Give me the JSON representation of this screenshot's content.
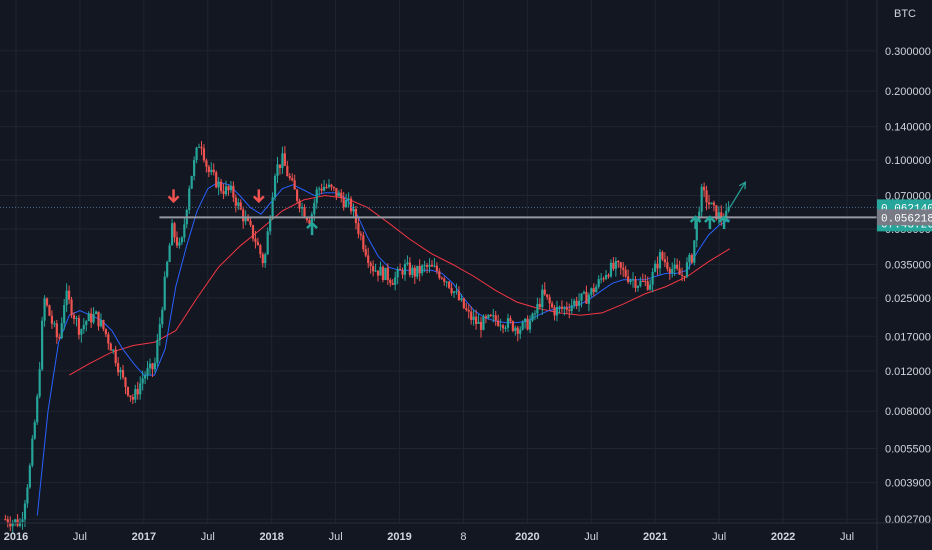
{
  "chart_data": {
    "type": "candlestick",
    "title": "",
    "unit": "BTC",
    "scale": "log",
    "ylim": [
      0.0026,
      0.5
    ],
    "grid": true,
    "y_ticks": [
      "0.300000",
      "0.200000",
      "0.140000",
      "0.100000",
      "0.070000",
      "0.050000",
      "0.035000",
      "0.025000",
      "0.017000",
      "0.012000",
      "0.008000",
      "0.005500",
      "0.003900",
      "0.002700"
    ],
    "x_ticks": [
      {
        "label": "2016",
        "date": "2016-01",
        "year": true
      },
      {
        "label": "Jul",
        "date": "2016-07",
        "year": false
      },
      {
        "label": "2017",
        "date": "2017-01",
        "year": true
      },
      {
        "label": "Jul",
        "date": "2017-07",
        "year": false
      },
      {
        "label": "2018",
        "date": "2018-01",
        "year": true
      },
      {
        "label": "Jul",
        "date": "2018-07",
        "year": false
      },
      {
        "label": "2019",
        "date": "2019-01",
        "year": true
      },
      {
        "label": "8",
        "date": "2019-07",
        "year": false
      },
      {
        "label": "2020",
        "date": "2020-01",
        "year": true
      },
      {
        "label": "Jul",
        "date": "2020-07",
        "year": false
      },
      {
        "label": "2021",
        "date": "2021-01",
        "year": true
      },
      {
        "label": "Jul",
        "date": "2021-07",
        "year": false
      },
      {
        "label": "2022",
        "date": "2022-01",
        "year": true
      },
      {
        "label": "Jul",
        "date": "2022-07",
        "year": false
      }
    ],
    "price_path": [
      [
        "2015-12-01",
        0.0027
      ],
      [
        "2016-01-15",
        0.0026
      ],
      [
        "2016-02-10",
        0.0045
      ],
      [
        "2016-03-01",
        0.009
      ],
      [
        "2016-03-20",
        0.025
      ],
      [
        "2016-04-10",
        0.02
      ],
      [
        "2016-05-01",
        0.016
      ],
      [
        "2016-05-20",
        0.026
      ],
      [
        "2016-06-10",
        0.022
      ],
      [
        "2016-07-01",
        0.018
      ],
      [
        "2016-07-20",
        0.02
      ],
      [
        "2016-08-15",
        0.021
      ],
      [
        "2016-09-10",
        0.018
      ],
      [
        "2016-10-10",
        0.014
      ],
      [
        "2016-11-01",
        0.011
      ],
      [
        "2016-12-01",
        0.009
      ],
      [
        "2017-01-01",
        0.0115
      ],
      [
        "2017-02-01",
        0.0125
      ],
      [
        "2017-03-01",
        0.03
      ],
      [
        "2017-03-20",
        0.05
      ],
      [
        "2017-04-15",
        0.04
      ],
      [
        "2017-05-10",
        0.08
      ],
      [
        "2017-06-10",
        0.125
      ],
      [
        "2017-07-01",
        0.09
      ],
      [
        "2017-08-10",
        0.075
      ],
      [
        "2017-09-10",
        0.072
      ],
      [
        "2017-10-15",
        0.055
      ],
      [
        "2017-11-15",
        0.045
      ],
      [
        "2017-12-10",
        0.035
      ],
      [
        "2018-01-10",
        0.09
      ],
      [
        "2018-02-01",
        0.1
      ],
      [
        "2018-03-01",
        0.075
      ],
      [
        "2018-04-01",
        0.06
      ],
      [
        "2018-04-20",
        0.055
      ],
      [
        "2018-05-10",
        0.075
      ],
      [
        "2018-06-01",
        0.077
      ],
      [
        "2018-07-01",
        0.072
      ],
      [
        "2018-08-15",
        0.062
      ],
      [
        "2018-09-15",
        0.045
      ],
      [
        "2018-10-15",
        0.034
      ],
      [
        "2018-11-15",
        0.032
      ],
      [
        "2018-12-15",
        0.03
      ],
      [
        "2019-01-15",
        0.034
      ],
      [
        "2019-02-15",
        0.032
      ],
      [
        "2019-03-15",
        0.034
      ],
      [
        "2019-04-15",
        0.033
      ],
      [
        "2019-05-15",
        0.03
      ],
      [
        "2019-06-15",
        0.025
      ],
      [
        "2019-07-15",
        0.021
      ],
      [
        "2019-08-15",
        0.019
      ],
      [
        "2019-09-15",
        0.02
      ],
      [
        "2019-10-15",
        0.02
      ],
      [
        "2019-11-15",
        0.019
      ],
      [
        "2019-12-15",
        0.0185
      ],
      [
        "2020-01-15",
        0.02
      ],
      [
        "2020-02-15",
        0.026
      ],
      [
        "2020-03-15",
        0.022
      ],
      [
        "2020-04-15",
        0.0225
      ],
      [
        "2020-05-15",
        0.024
      ],
      [
        "2020-06-15",
        0.025
      ],
      [
        "2020-07-15",
        0.028
      ],
      [
        "2020-08-15",
        0.033
      ],
      [
        "2020-09-15",
        0.034
      ],
      [
        "2020-10-15",
        0.031
      ],
      [
        "2020-11-15",
        0.029
      ],
      [
        "2020-12-15",
        0.029
      ],
      [
        "2021-01-15",
        0.038
      ],
      [
        "2021-02-15",
        0.034
      ],
      [
        "2021-03-15",
        0.031
      ],
      [
        "2021-04-15",
        0.038
      ],
      [
        "2021-05-10",
        0.072
      ],
      [
        "2021-05-25",
        0.068
      ],
      [
        "2021-06-15",
        0.06
      ],
      [
        "2021-07-05",
        0.056
      ],
      [
        "2021-07-20",
        0.056
      ],
      [
        "2021-08-01",
        0.06214
      ]
    ],
    "ma_fast": [
      [
        "2016-03-01",
        0.0028
      ],
      [
        "2016-04-01",
        0.008
      ],
      [
        "2016-05-01",
        0.016
      ],
      [
        "2016-06-01",
        0.021
      ],
      [
        "2016-07-01",
        0.022
      ],
      [
        "2016-08-01",
        0.021
      ],
      [
        "2016-09-01",
        0.02
      ],
      [
        "2016-10-01",
        0.018
      ],
      [
        "2016-11-01",
        0.015
      ],
      [
        "2016-12-01",
        0.013
      ],
      [
        "2017-01-01",
        0.0115
      ],
      [
        "2017-02-01",
        0.0115
      ],
      [
        "2017-03-01",
        0.015
      ],
      [
        "2017-04-01",
        0.028
      ],
      [
        "2017-05-01",
        0.042
      ],
      [
        "2017-06-01",
        0.06
      ],
      [
        "2017-07-01",
        0.075
      ],
      [
        "2017-08-01",
        0.08
      ],
      [
        "2017-09-01",
        0.078
      ],
      [
        "2017-10-01",
        0.07
      ],
      [
        "2017-11-01",
        0.062
      ],
      [
        "2017-12-01",
        0.058
      ],
      [
        "2018-01-01",
        0.066
      ],
      [
        "2018-02-01",
        0.075
      ],
      [
        "2018-03-01",
        0.078
      ],
      [
        "2018-04-01",
        0.074
      ],
      [
        "2018-05-01",
        0.07
      ],
      [
        "2018-06-01",
        0.072
      ],
      [
        "2018-07-01",
        0.072
      ],
      [
        "2018-08-01",
        0.068
      ],
      [
        "2018-09-01",
        0.058
      ],
      [
        "2018-10-01",
        0.046
      ],
      [
        "2018-11-01",
        0.038
      ],
      [
        "2018-12-01",
        0.034
      ],
      [
        "2019-01-01",
        0.033
      ],
      [
        "2019-02-01",
        0.033
      ],
      [
        "2019-03-01",
        0.033
      ],
      [
        "2019-04-01",
        0.033
      ],
      [
        "2019-05-01",
        0.032
      ],
      [
        "2019-06-01",
        0.029
      ],
      [
        "2019-07-01",
        0.025
      ],
      [
        "2019-08-01",
        0.022
      ],
      [
        "2019-09-01",
        0.0205
      ],
      [
        "2019-10-01",
        0.0198
      ],
      [
        "2019-11-01",
        0.0195
      ],
      [
        "2019-12-01",
        0.0195
      ],
      [
        "2020-01-01",
        0.0198
      ],
      [
        "2020-02-01",
        0.021
      ],
      [
        "2020-03-01",
        0.022
      ],
      [
        "2020-04-01",
        0.0225
      ],
      [
        "2020-05-01",
        0.0228
      ],
      [
        "2020-06-01",
        0.0235
      ],
      [
        "2020-07-01",
        0.025
      ],
      [
        "2020-08-01",
        0.027
      ],
      [
        "2020-09-01",
        0.029
      ],
      [
        "2020-10-01",
        0.03
      ],
      [
        "2020-11-01",
        0.03
      ],
      [
        "2020-12-01",
        0.03
      ],
      [
        "2021-01-01",
        0.031
      ],
      [
        "2021-02-01",
        0.032
      ],
      [
        "2021-03-01",
        0.032
      ],
      [
        "2021-04-01",
        0.033
      ],
      [
        "2021-05-01",
        0.04
      ],
      [
        "2021-06-01",
        0.047
      ],
      [
        "2021-07-01",
        0.052
      ],
      [
        "2021-08-01",
        0.055
      ]
    ],
    "ma_slow": [
      [
        "2016-06-01",
        0.0115
      ],
      [
        "2016-08-01",
        0.013
      ],
      [
        "2016-10-01",
        0.0145
      ],
      [
        "2016-12-01",
        0.0155
      ],
      [
        "2017-02-01",
        0.016
      ],
      [
        "2017-04-01",
        0.018
      ],
      [
        "2017-06-01",
        0.025
      ],
      [
        "2017-08-01",
        0.034
      ],
      [
        "2017-10-01",
        0.042
      ],
      [
        "2017-12-01",
        0.05
      ],
      [
        "2018-02-01",
        0.06
      ],
      [
        "2018-04-01",
        0.067
      ],
      [
        "2018-06-01",
        0.07
      ],
      [
        "2018-08-01",
        0.068
      ],
      [
        "2018-10-01",
        0.062
      ],
      [
        "2018-12-01",
        0.053
      ],
      [
        "2019-02-01",
        0.045
      ],
      [
        "2019-04-01",
        0.039
      ],
      [
        "2019-06-01",
        0.035
      ],
      [
        "2019-08-01",
        0.031
      ],
      [
        "2019-10-01",
        0.027
      ],
      [
        "2019-12-01",
        0.024
      ],
      [
        "2020-02-01",
        0.0225
      ],
      [
        "2020-04-01",
        0.0215
      ],
      [
        "2020-06-01",
        0.021
      ],
      [
        "2020-08-01",
        0.0215
      ],
      [
        "2020-10-01",
        0.0235
      ],
      [
        "2020-12-01",
        0.026
      ],
      [
        "2021-02-01",
        0.028
      ],
      [
        "2021-04-01",
        0.031
      ],
      [
        "2021-06-01",
        0.036
      ],
      [
        "2021-08-01",
        0.041
      ]
    ],
    "support_line": {
      "value": 0.056218,
      "from": "2017-02-15",
      "to": "2022-12-31"
    },
    "last_price_line": {
      "value": 0.06214
    },
    "arrows": [
      {
        "type": "down",
        "date": "2017-03-25",
        "value": 0.066,
        "color": "#f0524f"
      },
      {
        "type": "down",
        "date": "2017-11-25",
        "value": 0.066,
        "color": "#f0524f"
      },
      {
        "type": "up",
        "date": "2018-04-25",
        "value": 0.047,
        "color": "#26a69a"
      },
      {
        "type": "up",
        "date": "2021-04-25",
        "value": 0.05,
        "color": "#26a69a"
      },
      {
        "type": "up",
        "date": "2021-06-05",
        "value": 0.05,
        "color": "#26a69a"
      },
      {
        "type": "up",
        "date": "2021-07-15",
        "value": 0.05,
        "color": "#26a69a"
      }
    ],
    "projection_arrow": {
      "from_date": "2021-08-01",
      "from_value": 0.062,
      "to_date": "2021-09-15",
      "to_value": 0.08,
      "color": "#26a69a"
    },
    "price_tags": [
      {
        "text": "0.062140",
        "value": 0.06214,
        "bg": "#26a69a",
        "offset": 0
      },
      {
        "text": "07:43:26",
        "value": 0.06214,
        "bg": "#26a69a",
        "offset": 16
      },
      {
        "text": "0.056218",
        "value": 0.056218,
        "bg": "#787b86",
        "offset": 0
      }
    ],
    "colors": {
      "up": "#26a69a",
      "down": "#ef5350",
      "ma_fast": "#2962ff",
      "ma_slow": "#f23645",
      "grid": "#1f2430",
      "support": "#9598a1"
    }
  }
}
